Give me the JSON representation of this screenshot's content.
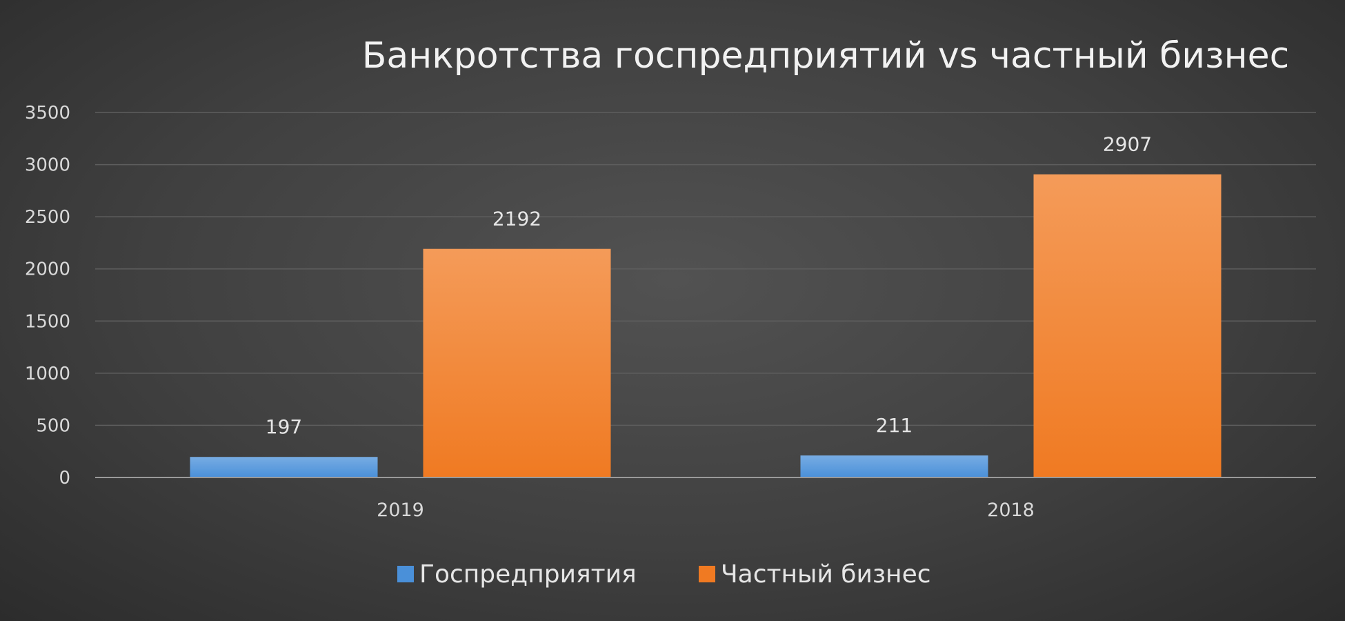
{
  "chart_data": {
    "type": "bar",
    "title": "Банкротства госпредприятий vs частный бизнес",
    "xlabel": "",
    "ylabel": "",
    "categories": [
      "2019",
      "2018"
    ],
    "series": [
      {
        "name": "Госпредприятия",
        "values": [
          197,
          211
        ],
        "color": "#4a90d9"
      },
      {
        "name": "Частный бизнес",
        "values": [
          2192,
          2907
        ],
        "color": "#f07a22"
      }
    ],
    "ylim": [
      0,
      3500
    ],
    "yticks": [
      "0",
      "500",
      "1000",
      "1500",
      "2000",
      "2500",
      "3000",
      "3500"
    ],
    "data_labels": [
      [
        "197",
        "211"
      ],
      [
        "2192",
        "2907"
      ]
    ],
    "grid": true,
    "legend_position": "bottom"
  }
}
